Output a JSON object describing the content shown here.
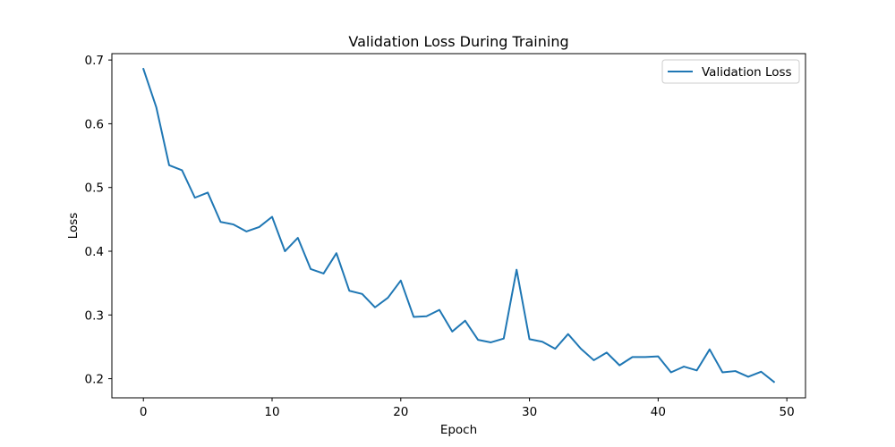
{
  "chart_data": {
    "type": "line",
    "title": "Validation Loss During Training",
    "xlabel": "Epoch",
    "ylabel": "Loss",
    "xlim": [
      -2.45,
      51.45
    ],
    "ylim": [
      0.17,
      0.71
    ],
    "xticks": [
      0,
      10,
      20,
      30,
      40,
      50
    ],
    "yticks": [
      0.2,
      0.3,
      0.4,
      0.5,
      0.6,
      0.7
    ],
    "xtick_labels": [
      "0",
      "10",
      "20",
      "30",
      "40",
      "50"
    ],
    "ytick_labels": [
      "0.2",
      "0.3",
      "0.4",
      "0.5",
      "0.6",
      "0.7"
    ],
    "grid": false,
    "legend_position": "top-right",
    "series": [
      {
        "name": "Validation Loss",
        "color": "#1f77b4",
        "x": [
          0,
          1,
          2,
          3,
          4,
          5,
          6,
          7,
          8,
          9,
          10,
          11,
          12,
          13,
          14,
          15,
          16,
          17,
          18,
          19,
          20,
          21,
          22,
          23,
          24,
          25,
          26,
          27,
          28,
          29,
          30,
          31,
          32,
          33,
          34,
          35,
          36,
          37,
          38,
          39,
          40,
          41,
          42,
          43,
          44,
          45,
          46,
          47,
          48,
          49
        ],
        "y": [
          0.686,
          0.626,
          0.535,
          0.527,
          0.484,
          0.492,
          0.446,
          0.442,
          0.431,
          0.438,
          0.454,
          0.4,
          0.421,
          0.372,
          0.365,
          0.397,
          0.338,
          0.333,
          0.312,
          0.327,
          0.354,
          0.297,
          0.298,
          0.308,
          0.274,
          0.291,
          0.261,
          0.257,
          0.263,
          0.371,
          0.262,
          0.258,
          0.247,
          0.27,
          0.247,
          0.229,
          0.241,
          0.221,
          0.234,
          0.234,
          0.235,
          0.21,
          0.219,
          0.213,
          0.246,
          0.21,
          0.212,
          0.203,
          0.211,
          0.195
        ]
      }
    ]
  }
}
